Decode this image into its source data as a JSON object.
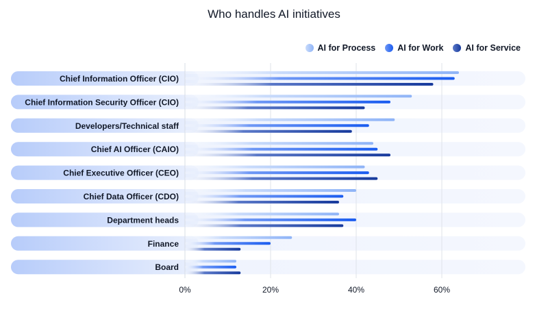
{
  "chart_data": {
    "type": "bar",
    "orientation": "horizontal",
    "title": "Who handles AI initiatives",
    "xlabel": "",
    "ylabel": "",
    "xlim": [
      0,
      80
    ],
    "ticks": [
      "0%",
      "20%",
      "40%",
      "60%"
    ],
    "tick_values": [
      0,
      20,
      40,
      60
    ],
    "legend_position": "top-right",
    "grid": true,
    "categories": [
      "Chief Information Officer (CIO)",
      "Chief Information Security Officer (CIO)",
      "Developers/Technical staff",
      "Chief AI Officer (CAIO)",
      "Chief Executive Officer (CEO)",
      "Chief Data Officer (CDO)",
      "Department heads",
      "Finance",
      "Board"
    ],
    "series": [
      {
        "name": "AI for Process",
        "color": "#8fb4f7",
        "values": [
          64,
          53,
          49,
          44,
          42,
          40,
          36,
          25,
          12
        ]
      },
      {
        "name": "AI for Work",
        "color": "#1a5cf0",
        "values": [
          63,
          48,
          43,
          45,
          43,
          37,
          40,
          20,
          12
        ]
      },
      {
        "name": "AI for Service",
        "color": "#173a9c",
        "values": [
          58,
          42,
          39,
          48,
          45,
          36,
          37,
          13,
          13
        ]
      }
    ]
  }
}
